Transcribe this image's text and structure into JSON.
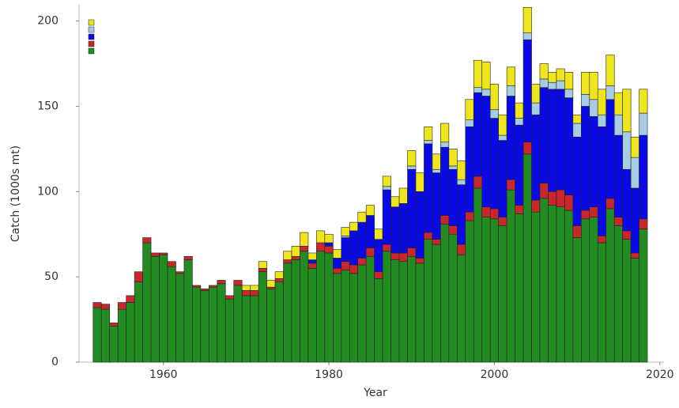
{
  "chart_data": {
    "type": "stacked-bar",
    "x_label": "Year",
    "y_label": "Catch (1000s mt)",
    "x": [
      1952,
      1953,
      1954,
      1955,
      1956,
      1957,
      1958,
      1959,
      1960,
      1961,
      1962,
      1963,
      1964,
      1965,
      1966,
      1967,
      1968,
      1969,
      1970,
      1971,
      1972,
      1973,
      1974,
      1975,
      1976,
      1977,
      1978,
      1979,
      1980,
      1981,
      1982,
      1983,
      1984,
      1985,
      1986,
      1987,
      1988,
      1989,
      1990,
      1991,
      1992,
      1993,
      1994,
      1995,
      1996,
      1997,
      1998,
      1999,
      2000,
      2001,
      2002,
      2003,
      2004,
      2005,
      2006,
      2007,
      2008,
      2009,
      2010,
      2011,
      2012,
      2013,
      2014,
      2015,
      2016,
      2017,
      2018
    ],
    "series": [
      {
        "color": "#228b22",
        "values": [
          32,
          31,
          21,
          31,
          35,
          47,
          70,
          62,
          63,
          56,
          52,
          60,
          44,
          42,
          44,
          46,
          37,
          45,
          39,
          39,
          53,
          43,
          47,
          58,
          60,
          65,
          55,
          65,
          64,
          52,
          54,
          52,
          57,
          62,
          49,
          65,
          60,
          59,
          62,
          58,
          72,
          69,
          81,
          75,
          63,
          83,
          102,
          85,
          84,
          80,
          101,
          87,
          122,
          88,
          96,
          92,
          91,
          89,
          73,
          84,
          85,
          70,
          90,
          80,
          72,
          61,
          78
        ]
      },
      {
        "color": "#c8282d",
        "values": [
          3,
          3,
          2,
          4,
          4,
          6,
          3,
          2,
          1,
          3,
          1,
          2,
          1,
          1,
          1,
          2,
          2,
          3,
          3,
          3,
          2,
          1,
          2,
          2,
          2,
          3,
          3,
          5,
          4,
          3,
          5,
          5,
          4,
          5,
          4,
          4,
          4,
          5,
          5,
          3,
          4,
          3,
          5,
          5,
          6,
          5,
          7,
          6,
          6,
          5,
          6,
          5,
          7,
          7,
          9,
          8,
          10,
          9,
          7,
          5,
          6,
          4,
          6,
          5,
          5,
          3,
          6
        ]
      },
      {
        "color": "#0a0ae6",
        "values": [
          0,
          0,
          0,
          0,
          0,
          0,
          0,
          0,
          0,
          0,
          0,
          0,
          0,
          0,
          0,
          0,
          0,
          0,
          0,
          0,
          0,
          0,
          0,
          0,
          0,
          0,
          2,
          0,
          2,
          6,
          14,
          20,
          21,
          19,
          19,
          32,
          27,
          29,
          46,
          39,
          52,
          39,
          40,
          33,
          35,
          50,
          49,
          65,
          53,
          45,
          49,
          47,
          60,
          50,
          56,
          60,
          59,
          57,
          52,
          61,
          53,
          64,
          58,
          48,
          36,
          38,
          49
        ]
      },
      {
        "color": "#a6cde3",
        "values": [
          0,
          0,
          0,
          0,
          0,
          0,
          0,
          0,
          0,
          0,
          0,
          0,
          0,
          0,
          0,
          0,
          0,
          0,
          0,
          0,
          0,
          0,
          0,
          0,
          0,
          0,
          0,
          0,
          0,
          0,
          1,
          0,
          0,
          0,
          0,
          2,
          0,
          0,
          2,
          0,
          2,
          2,
          3,
          2,
          3,
          4,
          3,
          4,
          5,
          3,
          6,
          4,
          4,
          7,
          5,
          4,
          5,
          5,
          8,
          7,
          10,
          7,
          8,
          12,
          22,
          18,
          13
        ]
      },
      {
        "color": "#efe51c",
        "values": [
          0,
          0,
          0,
          0,
          0,
          0,
          0,
          0,
          0,
          0,
          0,
          0,
          0,
          0,
          0,
          0,
          0,
          0,
          3,
          3,
          4,
          4,
          4,
          5,
          6,
          8,
          4,
          7,
          5,
          5,
          5,
          5,
          6,
          6,
          6,
          6,
          6,
          9,
          9,
          11,
          8,
          9,
          11,
          10,
          11,
          12,
          16,
          16,
          15,
          12,
          11,
          9,
          15,
          11,
          9,
          6,
          7,
          10,
          5,
          13,
          16,
          15,
          18,
          13,
          25,
          12,
          14
        ]
      }
    ],
    "xlim": [
      1949.8,
      2020.5
    ],
    "xticks": [
      1960,
      1980,
      2000,
      2020
    ],
    "ylim": [
      0,
      210
    ],
    "yticks": [
      0,
      50,
      100,
      150,
      200
    ]
  }
}
